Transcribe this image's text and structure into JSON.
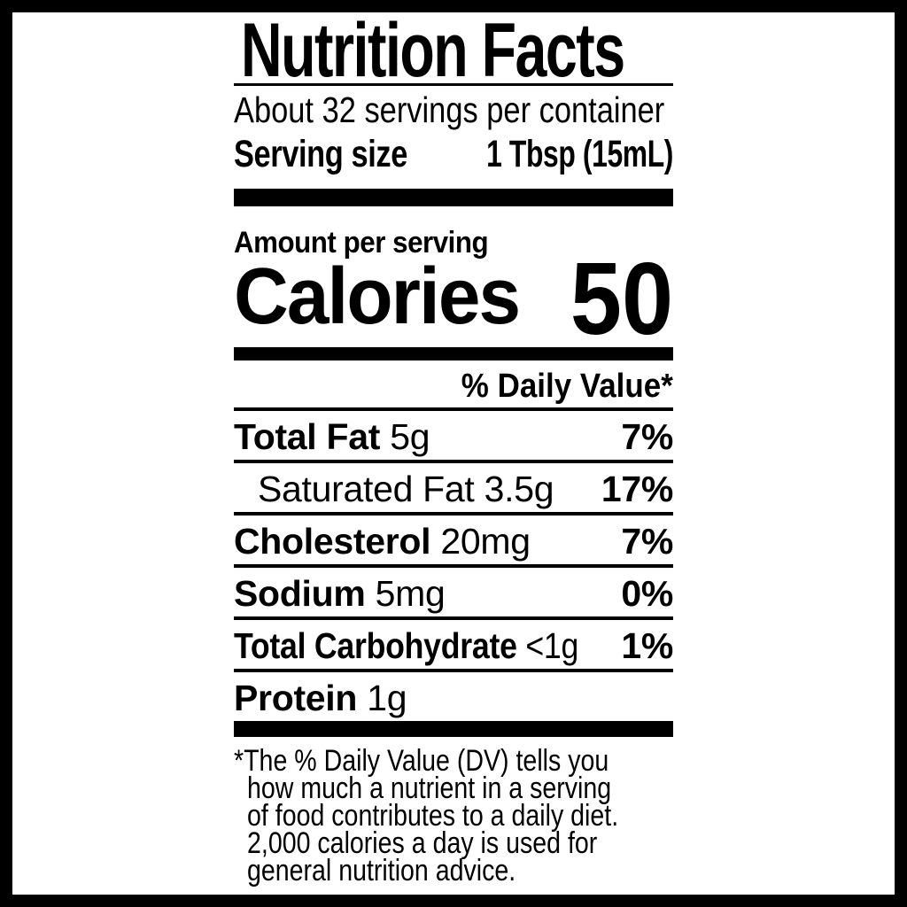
{
  "label": {
    "title": "Nutrition Facts",
    "servings_per_container": "About 32 servings per container",
    "serving_size": {
      "label": "Serving size",
      "value": "1 Tbsp (15mL)"
    },
    "amount_per_serving": "Amount per serving",
    "calories": {
      "label": "Calories",
      "value": "50"
    },
    "daily_value_header": "% Daily Value*",
    "nutrients": [
      {
        "name": "Total Fat",
        "amount": "5g",
        "daily_value": "7%"
      },
      {
        "name": "Saturated Fat",
        "amount": "3.5g",
        "daily_value": "17%"
      },
      {
        "name": "Cholesterol",
        "amount": "20mg",
        "daily_value": "7%"
      },
      {
        "name": "Sodium",
        "amount": "5mg",
        "daily_value": "0%"
      },
      {
        "name": "Total Carbohydrate",
        "amount": "<1g",
        "daily_value": "1%"
      },
      {
        "name": "Protein",
        "amount": "1g",
        "daily_value": ""
      }
    ],
    "footnote_lines": [
      "*The % Daily Value (DV) tells you",
      "how much a nutrient in a serving",
      "of food contributes to a daily diet.",
      "2,000 calories a day is used for",
      "general nutrition advice."
    ],
    "colors": {
      "text": "#000000",
      "background": "#ffffff"
    }
  }
}
